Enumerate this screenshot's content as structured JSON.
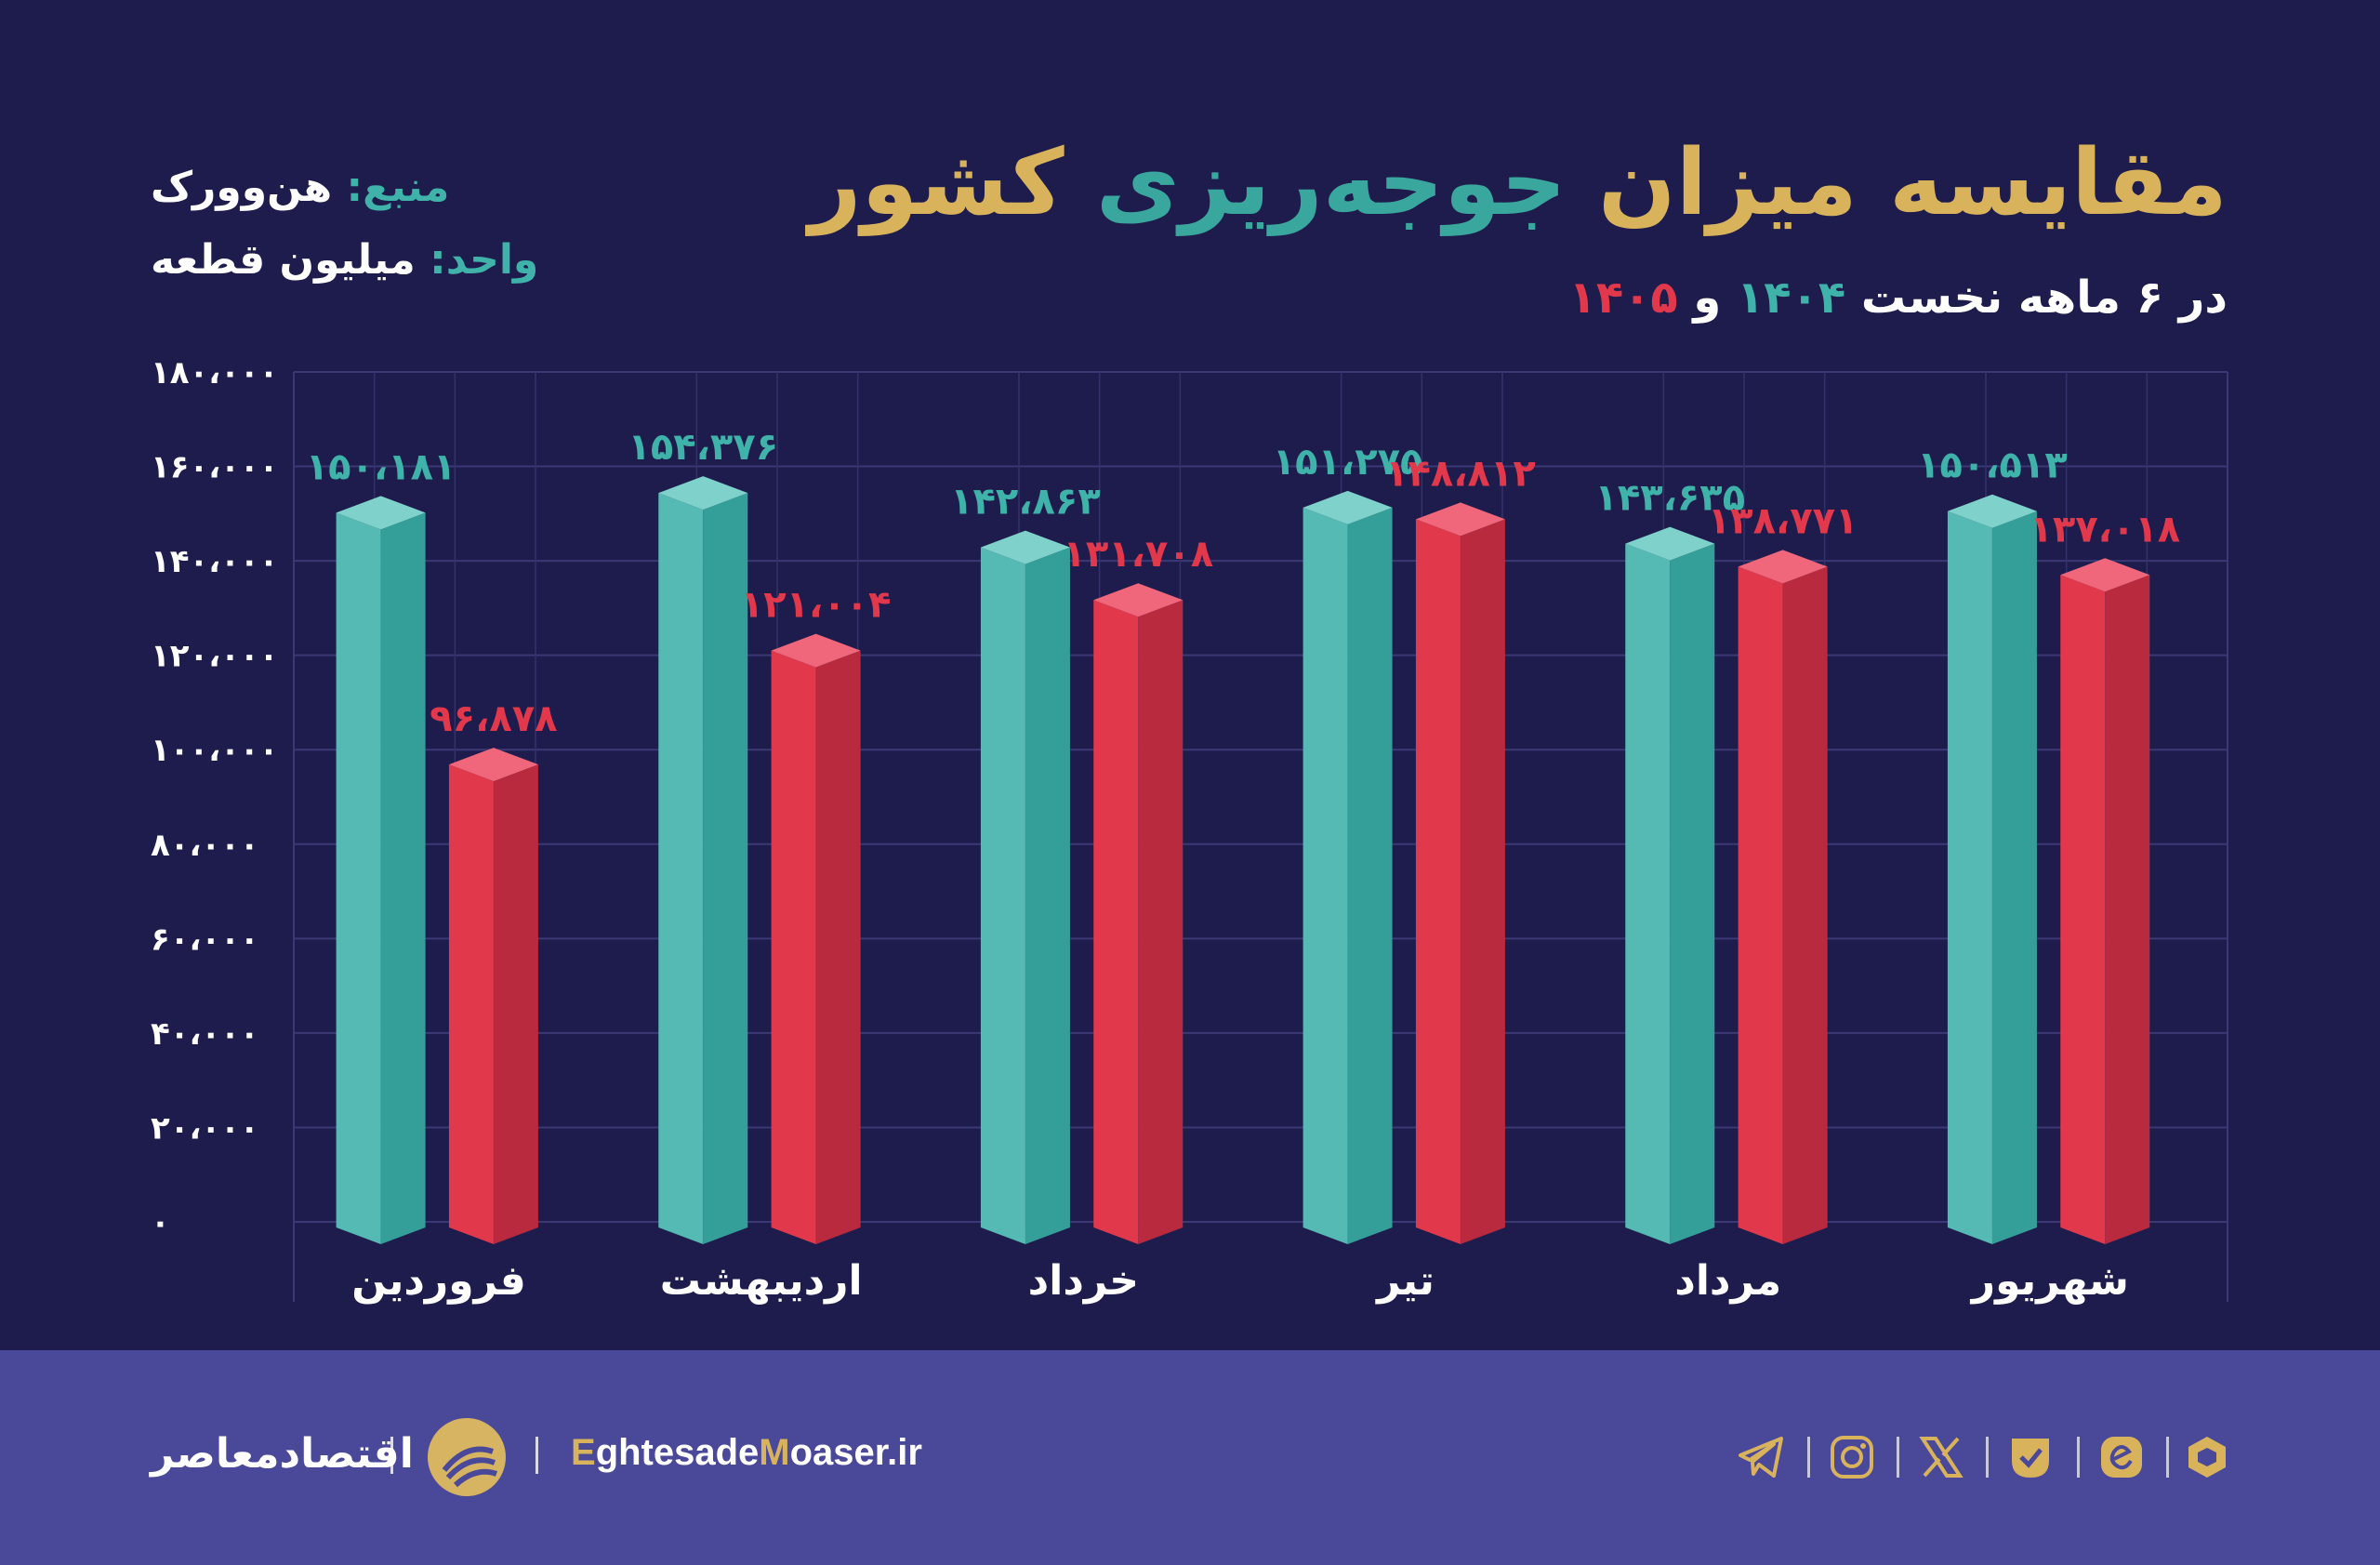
{
  "header": {
    "title_part1": "مقایسه میزان",
    "title_part2": "جوجه‌ریزی",
    "title_part3": "کشور",
    "subtitle_prefix": "در ۶ ماهه نخست",
    "subtitle_year1": "۱۴۰۴",
    "subtitle_and": "و",
    "subtitle_year2": "۱۴۰۵"
  },
  "meta": {
    "source_label": "منبع:",
    "source_value": "هن‌وورک",
    "unit_label": "واحد:",
    "unit_value": "میلیون قطعه"
  },
  "colors": {
    "background": "#1e1c4c",
    "series1": "#3fb3aa",
    "series2": "#e2384c",
    "gold": "#d9b35c",
    "footer": "#4a4899"
  },
  "chart_data": {
    "type": "bar",
    "categories": [
      "فروردین",
      "اردیبهشت",
      "خرداد",
      "تیر",
      "مرداد",
      "شهریور"
    ],
    "series": [
      {
        "values": [
          150181,
          154376,
          142863,
          151275,
          143635,
          150513
        ],
        "labels": [
          "۱۵۰،۱۸۱",
          "۱۵۴،۳۷۶",
          "۱۴۲،۸۶۳",
          "۱۵۱،۲۷۵",
          "۱۴۳،۶۳۵",
          "۱۵۰،۵۱۳"
        ]
      },
      {
        "values": [
          96878,
          121004,
          131708,
          148812,
          138771,
          137018
        ],
        "labels": [
          "۹۶،۸۷۸",
          "۱۲۱،۰۰۴",
          "۱۳۱،۷۰۸",
          "۱۴۸،۸۱۲",
          "۱۳۸،۷۷۱",
          "۱۳۷،۰۱۸"
        ]
      }
    ],
    "ylim": [
      0,
      180000
    ],
    "yticks": [
      0,
      20000,
      40000,
      60000,
      80000,
      100000,
      120000,
      140000,
      160000,
      180000
    ],
    "ytick_labels": [
      "۰",
      "۲۰،۰۰۰",
      "۴۰،۰۰۰",
      "۶۰،۰۰۰",
      "۸۰،۰۰۰",
      "۱۰۰،۰۰۰",
      "۱۲۰،۰۰۰",
      "۱۴۰،۰۰۰",
      "۱۶۰،۰۰۰",
      "۱۸۰،۰۰۰"
    ],
    "grid": true
  },
  "footer": {
    "brand_name": "اقتصادمعاصر",
    "site_e": "E",
    "site_part1": "ghtesade",
    "site_m": "M",
    "site_part2": "oaser",
    "site_tld": ".ir",
    "social_icons": [
      "telegram-icon",
      "instagram-icon",
      "x-icon",
      "bale-icon",
      "eitaa-icon",
      "rubika-icon"
    ]
  }
}
